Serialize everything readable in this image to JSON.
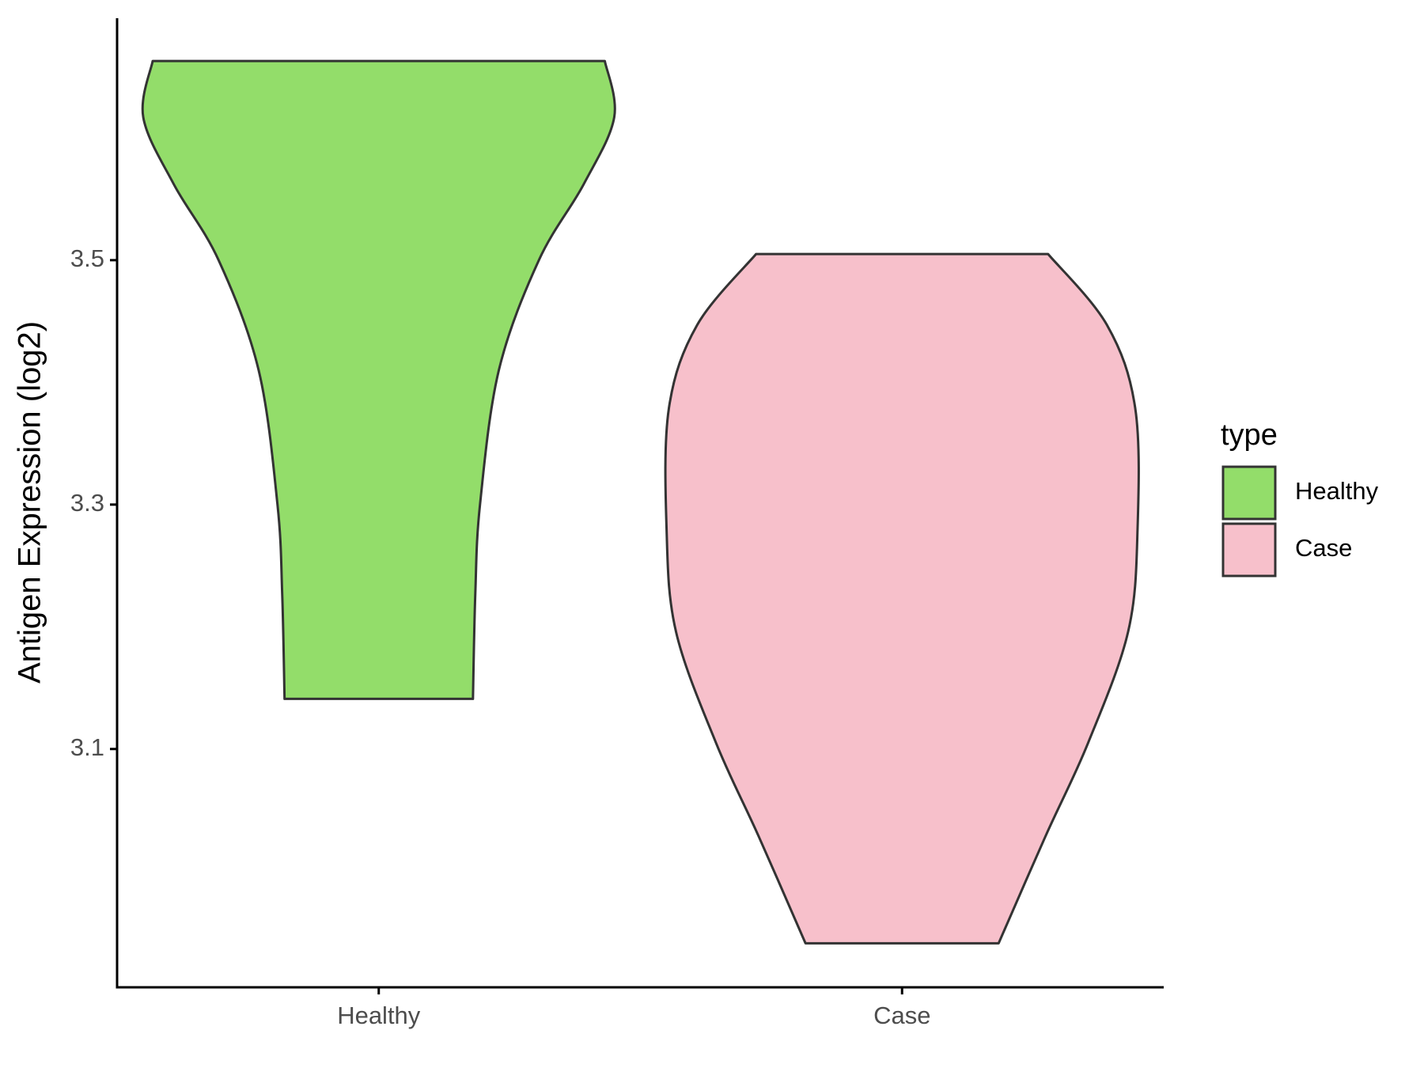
{
  "chart_data": {
    "type": "violin",
    "y_label": "Antigen Expression (log2)",
    "categories": [
      "Healthy",
      "Case"
    ],
    "legend_title": "type",
    "legend_position": "right",
    "series": [
      {
        "name": "Healthy",
        "color": "#93dd6a",
        "y": [
          3.663,
          3.617,
          3.562,
          3.5,
          3.41,
          3.3,
          3.227,
          3.141
        ],
        "density": [
          0.96,
          1.0,
          0.87,
          0.68,
          0.51,
          0.43,
          0.41,
          0.4
        ]
      },
      {
        "name": "Case",
        "color": "#f7c0cb",
        "y": [
          3.505,
          3.447,
          3.379,
          3.28,
          3.196,
          3.105,
          3.029,
          2.941
        ],
        "density": [
          0.62,
          0.87,
          0.99,
          1.0,
          0.96,
          0.79,
          0.61,
          0.41
        ]
      }
    ],
    "ylim": [
      2.905,
      3.698
    ],
    "yticks": [
      3.1,
      3.3,
      3.5
    ],
    "grid": false
  }
}
